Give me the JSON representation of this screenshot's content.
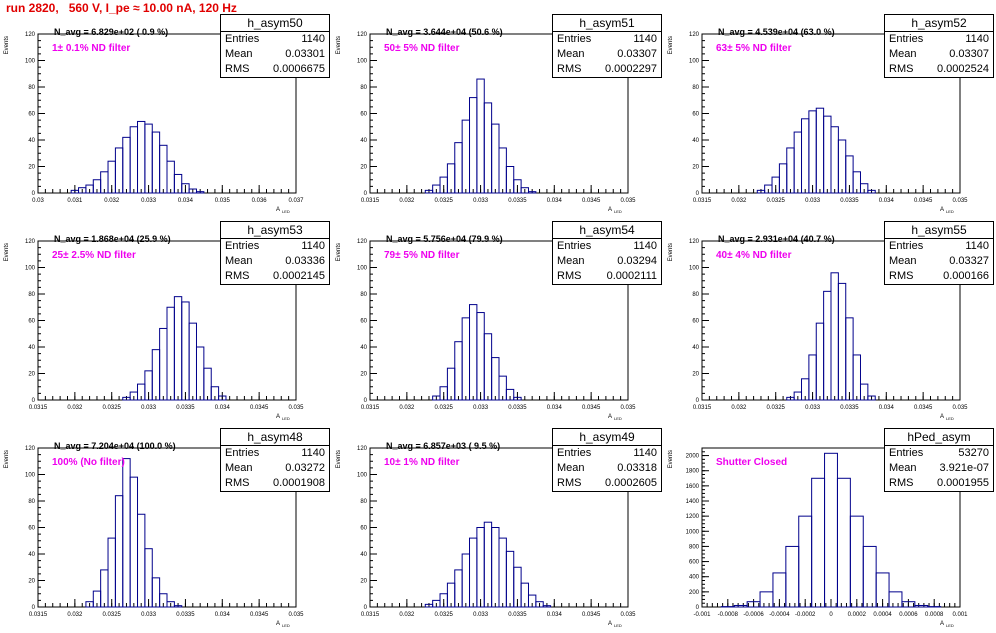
{
  "title": "run 2820,   560 V, I_pe ≈ 10.00 nA, 120 Hz",
  "stat_labels": {
    "entries": "Entries",
    "mean": "Mean",
    "rms": "RMS"
  },
  "ylabel": "Events",
  "xlabel": "A",
  "xlabel_sub": "LED",
  "colors": {
    "title": "#e00000",
    "annotation": "#ee00ee",
    "histogram": "#00008b"
  },
  "panels": [
    {
      "name": "h_asym50",
      "entries": "1140",
      "mean": "0.03301",
      "rms": "0.0006675",
      "navg": "N_avg = 6.829e+02 ( 0.9 %)",
      "filter": "1± 0.1% ND filter",
      "xticks": [
        "0.03",
        "0.031",
        "0.032",
        "0.033",
        "0.034",
        "0.035",
        "0.036",
        "0.037"
      ],
      "yticks": [
        "0",
        "20",
        "40",
        "60",
        "80",
        "100",
        "120"
      ]
    },
    {
      "name": "h_asym51",
      "entries": "1140",
      "mean": "0.03307",
      "rms": "0.0002297",
      "navg": "N_avg = 3.644e+04 (50.6 %)",
      "filter": "50± 5% ND filter",
      "xticks": [
        "0.0315",
        "0.032",
        "0.0325",
        "0.033",
        "0.0335",
        "0.034",
        "0.0345",
        "0.035"
      ],
      "yticks": [
        "0",
        "20",
        "40",
        "60",
        "80",
        "100",
        "120"
      ]
    },
    {
      "name": "h_asym52",
      "entries": "1140",
      "mean": "0.03307",
      "rms": "0.0002524",
      "navg": "N_avg = 4.539e+04 (63.0 %)",
      "filter": "63± 5% ND filter",
      "xticks": [
        "0.0315",
        "0.032",
        "0.0325",
        "0.033",
        "0.0335",
        "0.034",
        "0.0345",
        "0.035"
      ],
      "yticks": [
        "0",
        "20",
        "40",
        "60",
        "80",
        "100",
        "120"
      ]
    },
    {
      "name": "h_asym53",
      "entries": "1140",
      "mean": "0.03336",
      "rms": "0.0002145",
      "navg": "N_avg = 1.868e+04 (25.9 %)",
      "filter": "25± 2.5% ND filter",
      "xticks": [
        "0.0315",
        "0.032",
        "0.0325",
        "0.033",
        "0.0335",
        "0.034",
        "0.0345",
        "0.035"
      ],
      "yticks": [
        "0",
        "20",
        "40",
        "60",
        "80",
        "100",
        "120"
      ]
    },
    {
      "name": "h_asym54",
      "entries": "1140",
      "mean": "0.03294",
      "rms": "0.0002111",
      "navg": "N_avg = 5.756e+04 (79.9 %)",
      "filter": "79± 5% ND filter",
      "xticks": [
        "0.0315",
        "0.032",
        "0.0325",
        "0.033",
        "0.0335",
        "0.034",
        "0.0345",
        "0.035"
      ],
      "yticks": [
        "0",
        "20",
        "40",
        "60",
        "80",
        "100",
        "120"
      ]
    },
    {
      "name": "h_asym55",
      "entries": "1140",
      "mean": "0.03327",
      "rms": "0.000166",
      "navg": "N_avg = 2.931e+04 (40.7 %)",
      "filter": "40± 4% ND filter",
      "xticks": [
        "0.0315",
        "0.032",
        "0.0325",
        "0.033",
        "0.0335",
        "0.034",
        "0.0345",
        "0.035"
      ],
      "yticks": [
        "0",
        "20",
        "40",
        "60",
        "80",
        "100",
        "120"
      ]
    },
    {
      "name": "h_asym48",
      "entries": "1140",
      "mean": "0.03272",
      "rms": "0.0001908",
      "navg": "N_avg = 7.204e+04 (100.0 %)",
      "filter": "100% (No filter)",
      "xticks": [
        "0.0315",
        "0.032",
        "0.0325",
        "0.033",
        "0.0335",
        "0.034",
        "0.0345",
        "0.035"
      ],
      "yticks": [
        "0",
        "20",
        "40",
        "60",
        "80",
        "100",
        "120"
      ]
    },
    {
      "name": "h_asym49",
      "entries": "1140",
      "mean": "0.03318",
      "rms": "0.0002605",
      "navg": "N_avg = 6.857e+03 ( 9.5 %)",
      "filter": "10± 1% ND filter",
      "xticks": [
        "0.0315",
        "0.032",
        "0.0325",
        "0.033",
        "0.0335",
        "0.034",
        "0.0345",
        "0.035"
      ],
      "yticks": [
        "0",
        "20",
        "40",
        "60",
        "80",
        "100",
        "120"
      ]
    },
    {
      "name": "hPed_asym",
      "entries": "53270",
      "mean": "3.921e-07",
      "rms": "0.0001955",
      "navg": "",
      "filter": "Shutter Closed",
      "xticks": [
        "-0.001",
        "-0.0008",
        "-0.0006",
        "-0.0004",
        "-0.0002",
        "0",
        "0.0002",
        "0.0004",
        "0.0006",
        "0.0008",
        "0.001"
      ],
      "yticks": [
        "0",
        "200",
        "400",
        "600",
        "800",
        "1000",
        "1200",
        "1400",
        "1600",
        "1800",
        "2000"
      ]
    }
  ],
  "chart_data": [
    {
      "type": "bar",
      "name": "h_asym50",
      "xlim": [
        0.03,
        0.037
      ],
      "ylim": [
        0,
        120
      ],
      "x": [
        0.031,
        0.0312,
        0.0314,
        0.0316,
        0.0318,
        0.032,
        0.0322,
        0.0324,
        0.0326,
        0.0328,
        0.033,
        0.0332,
        0.0334,
        0.0336,
        0.0338,
        0.034,
        0.0342,
        0.0344
      ],
      "values": [
        2,
        4,
        6,
        10,
        16,
        24,
        34,
        42,
        50,
        54,
        52,
        46,
        36,
        24,
        14,
        7,
        3,
        1
      ]
    },
    {
      "type": "bar",
      "name": "h_asym51",
      "xlim": [
        0.0315,
        0.035
      ],
      "ylim": [
        0,
        120
      ],
      "x": [
        0.0323,
        0.0324,
        0.0325,
        0.0326,
        0.0327,
        0.0328,
        0.0329,
        0.033,
        0.0331,
        0.0332,
        0.0333,
        0.0334,
        0.0335,
        0.0336,
        0.0337
      ],
      "values": [
        2,
        6,
        12,
        22,
        38,
        55,
        72,
        86,
        68,
        52,
        34,
        20,
        10,
        4,
        1
      ]
    },
    {
      "type": "bar",
      "name": "h_asym52",
      "xlim": [
        0.0315,
        0.035
      ],
      "ylim": [
        0,
        120
      ],
      "x": [
        0.0323,
        0.0324,
        0.0325,
        0.0326,
        0.0327,
        0.0328,
        0.0329,
        0.033,
        0.0331,
        0.0332,
        0.0333,
        0.0334,
        0.0335,
        0.0336,
        0.0337,
        0.0338
      ],
      "values": [
        2,
        6,
        12,
        22,
        34,
        46,
        56,
        62,
        64,
        58,
        50,
        40,
        28,
        16,
        7,
        2
      ]
    },
    {
      "type": "bar",
      "name": "h_asym53",
      "xlim": [
        0.0315,
        0.035
      ],
      "ylim": [
        0,
        120
      ],
      "x": [
        0.0327,
        0.0328,
        0.0329,
        0.033,
        0.0331,
        0.0332,
        0.0333,
        0.0334,
        0.0335,
        0.0336,
        0.0337,
        0.0338,
        0.0339,
        0.034
      ],
      "values": [
        2,
        6,
        12,
        22,
        38,
        54,
        70,
        78,
        74,
        58,
        40,
        24,
        10,
        3
      ]
    },
    {
      "type": "bar",
      "name": "h_asym54",
      "xlim": [
        0.0315,
        0.035
      ],
      "ylim": [
        0,
        120
      ],
      "x": [
        0.0324,
        0.0325,
        0.0326,
        0.0327,
        0.0328,
        0.0329,
        0.033,
        0.0331,
        0.0332,
        0.0333,
        0.0334,
        0.0335
      ],
      "values": [
        3,
        10,
        24,
        44,
        62,
        72,
        66,
        50,
        32,
        18,
        8,
        2
      ]
    },
    {
      "type": "bar",
      "name": "h_asym55",
      "xlim": [
        0.0315,
        0.035
      ],
      "ylim": [
        0,
        120
      ],
      "x": [
        0.0327,
        0.0328,
        0.0329,
        0.033,
        0.0331,
        0.0332,
        0.0333,
        0.0334,
        0.0335,
        0.0336,
        0.0337,
        0.0338
      ],
      "values": [
        2,
        6,
        16,
        34,
        58,
        82,
        96,
        88,
        62,
        34,
        12,
        3
      ]
    },
    {
      "type": "bar",
      "name": "h_asym48",
      "xlim": [
        0.0315,
        0.035
      ],
      "ylim": [
        0,
        120
      ],
      "x": [
        0.0322,
        0.0323,
        0.0324,
        0.0325,
        0.0326,
        0.0327,
        0.0328,
        0.0329,
        0.033,
        0.0331,
        0.0332,
        0.0333,
        0.0334
      ],
      "values": [
        4,
        12,
        28,
        52,
        84,
        112,
        98,
        70,
        44,
        22,
        10,
        4,
        1
      ]
    },
    {
      "type": "bar",
      "name": "h_asym49",
      "xlim": [
        0.0315,
        0.035
      ],
      "ylim": [
        0,
        120
      ],
      "x": [
        0.0323,
        0.0324,
        0.0325,
        0.0326,
        0.0327,
        0.0328,
        0.0329,
        0.033,
        0.0331,
        0.0332,
        0.0333,
        0.0334,
        0.0335,
        0.0336,
        0.0337,
        0.0338,
        0.0339
      ],
      "values": [
        2,
        5,
        10,
        18,
        28,
        40,
        52,
        60,
        64,
        60,
        52,
        42,
        30,
        18,
        9,
        4,
        1
      ]
    },
    {
      "type": "bar",
      "name": "hPed_asym",
      "xlim": [
        -0.001,
        0.001
      ],
      "ylim": [
        0,
        2100
      ],
      "x": [
        -0.0008,
        -0.0007,
        -0.0006,
        -0.0005,
        -0.0004,
        -0.0003,
        -0.0002,
        -0.0001,
        0.0,
        0.0001,
        0.0002,
        0.0003,
        0.0004,
        0.0005,
        0.0006,
        0.0007,
        0.0008
      ],
      "values": [
        5,
        20,
        70,
        200,
        450,
        800,
        1200,
        1700,
        2030,
        1700,
        1200,
        800,
        450,
        200,
        70,
        20,
        5
      ]
    }
  ]
}
